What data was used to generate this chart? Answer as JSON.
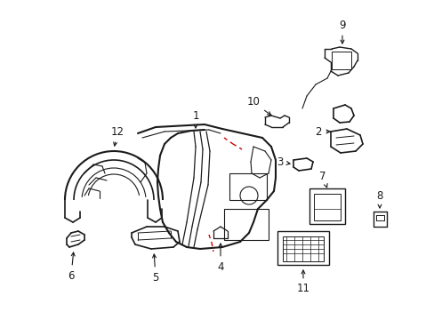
{
  "background_color": "#ffffff",
  "line_color": "#1a1a1a",
  "red_color": "#cc0000",
  "figsize": [
    4.89,
    3.6
  ],
  "dpi": 100
}
